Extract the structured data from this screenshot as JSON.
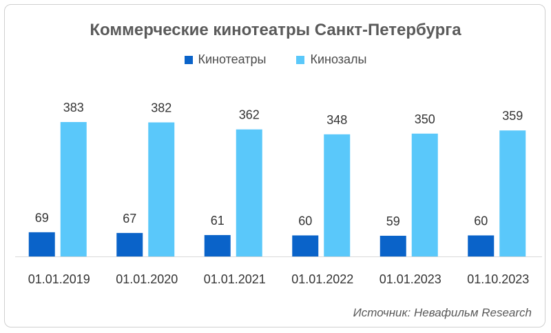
{
  "chart_data": {
    "type": "bar",
    "title": "Коммерческие кинотеатры Санкт-Петербурга",
    "categories": [
      "01.01.2019",
      "01.01.2020",
      "01.01.2021",
      "01.01.2022",
      "01.01.2023",
      "01.10.2023"
    ],
    "series": [
      {
        "name": "Кинотеатры",
        "color": "#0a63c9",
        "values": [
          69,
          67,
          61,
          60,
          59,
          60
        ]
      },
      {
        "name": "Кинозалы",
        "color": "#5ac8fa",
        "values": [
          383,
          382,
          362,
          348,
          350,
          359
        ]
      }
    ],
    "xlabel": "",
    "ylabel": "",
    "ylim": [
      0,
      383
    ],
    "grid": false,
    "legend_position": "top-center",
    "data_labels": true
  },
  "source_text": "Источник: Невафильм Research"
}
